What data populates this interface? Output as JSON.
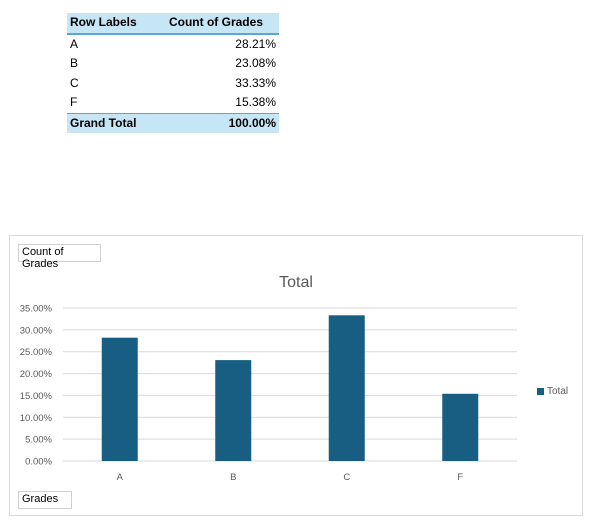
{
  "pivot": {
    "header_labels": "Row Labels",
    "header_values": "Count of Grades",
    "rows": [
      {
        "label": "A",
        "value": "28.21%"
      },
      {
        "label": "B",
        "value": "23.08%"
      },
      {
        "label": "C",
        "value": "33.33%"
      },
      {
        "label": "F",
        "value": "15.38%"
      }
    ],
    "total_label": "Grand Total",
    "total_value": "100.00%"
  },
  "field_buttons": {
    "values": "Count of Grades",
    "axis": "Grades"
  },
  "colors": {
    "bar": "#175e82",
    "gridline": "#d9d9d9",
    "axis_text": "#595959"
  },
  "chart_data": {
    "type": "bar",
    "title": "Total",
    "categories": [
      "A",
      "B",
      "C",
      "F"
    ],
    "series": [
      {
        "name": "Total",
        "values": [
          28.21,
          23.08,
          33.33,
          15.38
        ]
      }
    ],
    "ylim": [
      0,
      35
    ],
    "yticks": [
      "0.00%",
      "5.00%",
      "10.00%",
      "15.00%",
      "20.00%",
      "25.00%",
      "30.00%",
      "35.00%"
    ],
    "grid": true,
    "legend": "right"
  }
}
